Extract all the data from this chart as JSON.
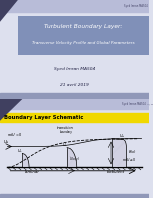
{
  "slide1_title_line1": "Turbulent Boundary Layer:",
  "slide1_title_line2": "Transverse Velocity Profile and Global Parameters",
  "slide1_author": "Syed Imran MA504",
  "slide1_date": "21 avril 2019",
  "slide2_section": "Boundary Layer Schematic",
  "header_text": "Syed Imran MA504",
  "slide1_bg": "#dde0ee",
  "slide2_bg": "#ffffff",
  "title_box_color": "#8090b8",
  "title_text_color": "#ffffff",
  "header_bar_color": "#9098b8",
  "header_bar_color2": "#b8bcd8",
  "footer_bar_color": "#9098b8",
  "yellow_bar_color": "#f0d800",
  "corner_triangle_color": "#404060",
  "body_text_color": "#222244"
}
